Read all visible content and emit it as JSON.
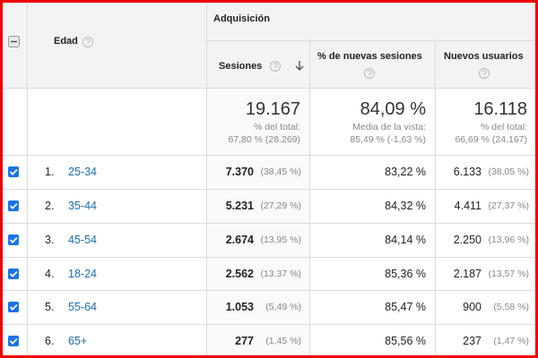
{
  "header": {
    "group": "Adquisición",
    "dimension": "Edad",
    "columns": [
      "Sesiones",
      "% de nuevas sesiones",
      "Nuevos usuarios"
    ]
  },
  "totals": [
    {
      "value": "19.167",
      "note": "% del total:",
      "detail": "67,80 % (28.269)"
    },
    {
      "value": "84,09 %",
      "note": "Media de la vista:",
      "detail": "85,49 % (-1,63 %)"
    },
    {
      "value": "16.118",
      "note": "% del total:",
      "detail": "66,69 % (24.167)"
    }
  ],
  "rows": [
    {
      "index": "1.",
      "label": "25-34",
      "sessions": "7.370",
      "sessions_share": "(38,45 %)",
      "new_sessions": "83,22 %",
      "new_users": "6.133",
      "new_users_share": "(38,05 %)"
    },
    {
      "index": "2.",
      "label": "35-44",
      "sessions": "5.231",
      "sessions_share": "(27,29 %)",
      "new_sessions": "84,32 %",
      "new_users": "4.411",
      "new_users_share": "(27,37 %)"
    },
    {
      "index": "3.",
      "label": "45-54",
      "sessions": "2.674",
      "sessions_share": "(13,95 %)",
      "new_sessions": "84,14 %",
      "new_users": "2.250",
      "new_users_share": "(13,96 %)"
    },
    {
      "index": "4.",
      "label": "18-24",
      "sessions": "2.562",
      "sessions_share": "(13,37 %)",
      "new_sessions": "85,36 %",
      "new_users": "2.187",
      "new_users_share": "(13,57 %)"
    },
    {
      "index": "5.",
      "label": "55-64",
      "sessions": "1.053",
      "sessions_share": "(5,49 %)",
      "new_sessions": "85,47 %",
      "new_users": "900",
      "new_users_share": "(5,58 %)"
    },
    {
      "index": "6.",
      "label": "65+",
      "sessions": "277",
      "sessions_share": "(1,45 %)",
      "new_sessions": "85,56 %",
      "new_users": "237",
      "new_users_share": "(1,47 %)"
    }
  ]
}
